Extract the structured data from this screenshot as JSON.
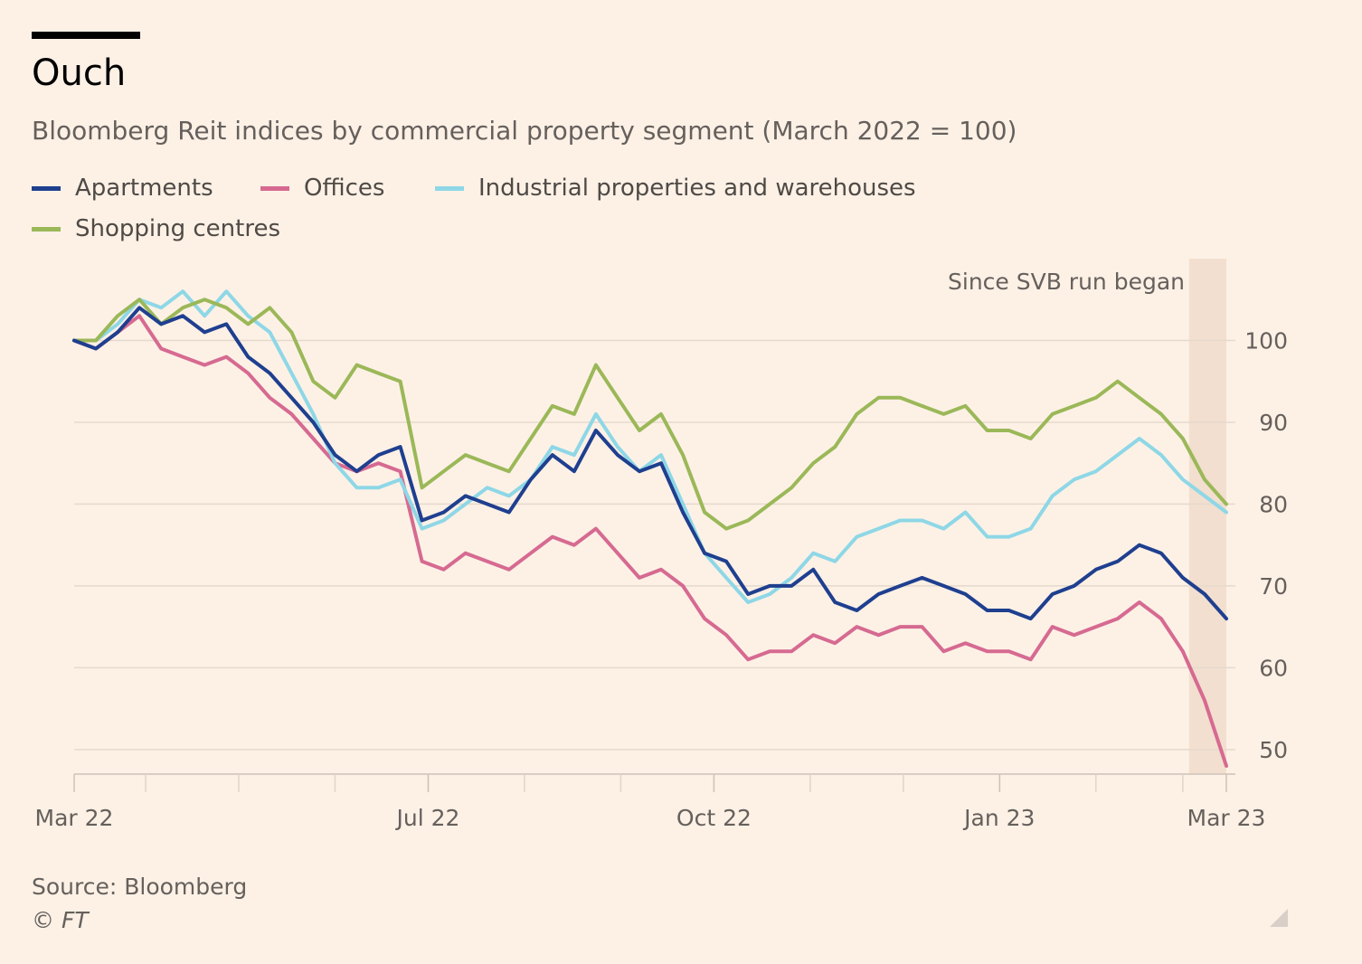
{
  "header": {
    "title": "Ouch",
    "subtitle": "Bloomberg Reit indices by commercial property segment (March 2022 = 100)"
  },
  "legend": [
    {
      "label": "Apartments",
      "color": "#1f3f8f"
    },
    {
      "label": "Offices",
      "color": "#d66a91"
    },
    {
      "label": "Industrial properties and warehouses",
      "color": "#8ed7e6"
    },
    {
      "label": "Shopping centres",
      "color": "#9bb858"
    }
  ],
  "footer": {
    "source": "Source: Bloomberg",
    "copyright": "© FT"
  },
  "chart_data": {
    "type": "line",
    "x_start": "2022-03-09",
    "x_end": "2023-03-15",
    "xtick_labels": [
      "Mar 22",
      "Jul 22",
      "Oct 22",
      "Jan 23",
      "Mar 23"
    ],
    "xtick_dates": [
      "2022-03-09",
      "2022-07-01",
      "2022-10-01",
      "2023-01-01",
      "2023-03-15"
    ],
    "ylim": [
      47,
      110
    ],
    "yticks": [
      50,
      60,
      70,
      80,
      90,
      100
    ],
    "grid": true,
    "legend_position": "top-left",
    "annotation": {
      "label": "Since SVB run began",
      "start": "2023-03-03",
      "end": "2023-03-15"
    },
    "series": [
      {
        "name": "Apartments",
        "color": "#1f3f8f",
        "points": [
          [
            "2022-03-09",
            100
          ],
          [
            "2022-03-16",
            99
          ],
          [
            "2022-03-23",
            101
          ],
          [
            "2022-03-30",
            104
          ],
          [
            "2022-04-06",
            102
          ],
          [
            "2022-04-13",
            103
          ],
          [
            "2022-04-20",
            101
          ],
          [
            "2022-04-27",
            102
          ],
          [
            "2022-05-04",
            98
          ],
          [
            "2022-05-11",
            96
          ],
          [
            "2022-05-18",
            93
          ],
          [
            "2022-05-25",
            90
          ],
          [
            "2022-06-01",
            86
          ],
          [
            "2022-06-08",
            84
          ],
          [
            "2022-06-15",
            86
          ],
          [
            "2022-06-22",
            87
          ],
          [
            "2022-06-29",
            78
          ],
          [
            "2022-07-06",
            79
          ],
          [
            "2022-07-13",
            81
          ],
          [
            "2022-07-20",
            80
          ],
          [
            "2022-07-27",
            79
          ],
          [
            "2022-08-03",
            83
          ],
          [
            "2022-08-10",
            86
          ],
          [
            "2022-08-17",
            84
          ],
          [
            "2022-08-24",
            89
          ],
          [
            "2022-08-31",
            86
          ],
          [
            "2022-09-07",
            84
          ],
          [
            "2022-09-14",
            85
          ],
          [
            "2022-09-21",
            79
          ],
          [
            "2022-09-28",
            74
          ],
          [
            "2022-10-05",
            73
          ],
          [
            "2022-10-12",
            69
          ],
          [
            "2022-10-19",
            70
          ],
          [
            "2022-10-26",
            70
          ],
          [
            "2022-11-02",
            72
          ],
          [
            "2022-11-09",
            68
          ],
          [
            "2022-11-16",
            67
          ],
          [
            "2022-11-23",
            69
          ],
          [
            "2022-11-30",
            70
          ],
          [
            "2022-12-07",
            71
          ],
          [
            "2022-12-14",
            70
          ],
          [
            "2022-12-21",
            69
          ],
          [
            "2022-12-28",
            67
          ],
          [
            "2023-01-04",
            67
          ],
          [
            "2023-01-11",
            66
          ],
          [
            "2023-01-18",
            69
          ],
          [
            "2023-01-25",
            70
          ],
          [
            "2023-02-01",
            72
          ],
          [
            "2023-02-08",
            73
          ],
          [
            "2023-02-15",
            75
          ],
          [
            "2023-02-22",
            74
          ],
          [
            "2023-03-01",
            71
          ],
          [
            "2023-03-08",
            69
          ],
          [
            "2023-03-15",
            66
          ]
        ]
      },
      {
        "name": "Offices",
        "color": "#d66a91",
        "points": [
          [
            "2022-03-09",
            100
          ],
          [
            "2022-03-16",
            99
          ],
          [
            "2022-03-23",
            101
          ],
          [
            "2022-03-30",
            103
          ],
          [
            "2022-04-06",
            99
          ],
          [
            "2022-04-13",
            98
          ],
          [
            "2022-04-20",
            97
          ],
          [
            "2022-04-27",
            98
          ],
          [
            "2022-05-04",
            96
          ],
          [
            "2022-05-11",
            93
          ],
          [
            "2022-05-18",
            91
          ],
          [
            "2022-05-25",
            88
          ],
          [
            "2022-06-01",
            85
          ],
          [
            "2022-06-08",
            84
          ],
          [
            "2022-06-15",
            85
          ],
          [
            "2022-06-22",
            84
          ],
          [
            "2022-06-29",
            73
          ],
          [
            "2022-07-06",
            72
          ],
          [
            "2022-07-13",
            74
          ],
          [
            "2022-07-20",
            73
          ],
          [
            "2022-07-27",
            72
          ],
          [
            "2022-08-03",
            74
          ],
          [
            "2022-08-10",
            76
          ],
          [
            "2022-08-17",
            75
          ],
          [
            "2022-08-24",
            77
          ],
          [
            "2022-08-31",
            74
          ],
          [
            "2022-09-07",
            71
          ],
          [
            "2022-09-14",
            72
          ],
          [
            "2022-09-21",
            70
          ],
          [
            "2022-09-28",
            66
          ],
          [
            "2022-10-05",
            64
          ],
          [
            "2022-10-12",
            61
          ],
          [
            "2022-10-19",
            62
          ],
          [
            "2022-10-26",
            62
          ],
          [
            "2022-11-02",
            64
          ],
          [
            "2022-11-09",
            63
          ],
          [
            "2022-11-16",
            65
          ],
          [
            "2022-11-23",
            64
          ],
          [
            "2022-11-30",
            65
          ],
          [
            "2022-12-07",
            65
          ],
          [
            "2022-12-14",
            62
          ],
          [
            "2022-12-21",
            63
          ],
          [
            "2022-12-28",
            62
          ],
          [
            "2023-01-04",
            62
          ],
          [
            "2023-01-11",
            61
          ],
          [
            "2023-01-18",
            65
          ],
          [
            "2023-01-25",
            64
          ],
          [
            "2023-02-01",
            65
          ],
          [
            "2023-02-08",
            66
          ],
          [
            "2023-02-15",
            68
          ],
          [
            "2023-02-22",
            66
          ],
          [
            "2023-03-01",
            62
          ],
          [
            "2023-03-08",
            56
          ],
          [
            "2023-03-15",
            48
          ]
        ]
      },
      {
        "name": "Industrial properties and warehouses",
        "color": "#8ed7e6",
        "points": [
          [
            "2022-03-09",
            100
          ],
          [
            "2022-03-16",
            100
          ],
          [
            "2022-03-23",
            102
          ],
          [
            "2022-03-30",
            105
          ],
          [
            "2022-04-06",
            104
          ],
          [
            "2022-04-13",
            106
          ],
          [
            "2022-04-20",
            103
          ],
          [
            "2022-04-27",
            106
          ],
          [
            "2022-05-04",
            103
          ],
          [
            "2022-05-11",
            101
          ],
          [
            "2022-05-18",
            96
          ],
          [
            "2022-05-25",
            91
          ],
          [
            "2022-06-01",
            85
          ],
          [
            "2022-06-08",
            82
          ],
          [
            "2022-06-15",
            82
          ],
          [
            "2022-06-22",
            83
          ],
          [
            "2022-06-29",
            77
          ],
          [
            "2022-07-06",
            78
          ],
          [
            "2022-07-13",
            80
          ],
          [
            "2022-07-20",
            82
          ],
          [
            "2022-07-27",
            81
          ],
          [
            "2022-08-03",
            83
          ],
          [
            "2022-08-10",
            87
          ],
          [
            "2022-08-17",
            86
          ],
          [
            "2022-08-24",
            91
          ],
          [
            "2022-08-31",
            87
          ],
          [
            "2022-09-07",
            84
          ],
          [
            "2022-09-14",
            86
          ],
          [
            "2022-09-21",
            80
          ],
          [
            "2022-09-28",
            74
          ],
          [
            "2022-10-05",
            71
          ],
          [
            "2022-10-12",
            68
          ],
          [
            "2022-10-19",
            69
          ],
          [
            "2022-10-26",
            71
          ],
          [
            "2022-11-02",
            74
          ],
          [
            "2022-11-09",
            73
          ],
          [
            "2022-11-16",
            76
          ],
          [
            "2022-11-23",
            77
          ],
          [
            "2022-11-30",
            78
          ],
          [
            "2022-12-07",
            78
          ],
          [
            "2022-12-14",
            77
          ],
          [
            "2022-12-21",
            79
          ],
          [
            "2022-12-28",
            76
          ],
          [
            "2023-01-04",
            76
          ],
          [
            "2023-01-11",
            77
          ],
          [
            "2023-01-18",
            81
          ],
          [
            "2023-01-25",
            83
          ],
          [
            "2023-02-01",
            84
          ],
          [
            "2023-02-08",
            86
          ],
          [
            "2023-02-15",
            88
          ],
          [
            "2023-02-22",
            86
          ],
          [
            "2023-03-01",
            83
          ],
          [
            "2023-03-08",
            81
          ],
          [
            "2023-03-15",
            79
          ]
        ]
      },
      {
        "name": "Shopping centres",
        "color": "#9bb858",
        "points": [
          [
            "2022-03-09",
            100
          ],
          [
            "2022-03-16",
            100
          ],
          [
            "2022-03-23",
            103
          ],
          [
            "2022-03-30",
            105
          ],
          [
            "2022-04-06",
            102
          ],
          [
            "2022-04-13",
            104
          ],
          [
            "2022-04-20",
            105
          ],
          [
            "2022-04-27",
            104
          ],
          [
            "2022-05-04",
            102
          ],
          [
            "2022-05-11",
            104
          ],
          [
            "2022-05-18",
            101
          ],
          [
            "2022-05-25",
            95
          ],
          [
            "2022-06-01",
            93
          ],
          [
            "2022-06-08",
            97
          ],
          [
            "2022-06-15",
            96
          ],
          [
            "2022-06-22",
            95
          ],
          [
            "2022-06-29",
            82
          ],
          [
            "2022-07-06",
            84
          ],
          [
            "2022-07-13",
            86
          ],
          [
            "2022-07-20",
            85
          ],
          [
            "2022-07-27",
            84
          ],
          [
            "2022-08-03",
            88
          ],
          [
            "2022-08-10",
            92
          ],
          [
            "2022-08-17",
            91
          ],
          [
            "2022-08-24",
            97
          ],
          [
            "2022-08-31",
            93
          ],
          [
            "2022-09-07",
            89
          ],
          [
            "2022-09-14",
            91
          ],
          [
            "2022-09-21",
            86
          ],
          [
            "2022-09-28",
            79
          ],
          [
            "2022-10-05",
            77
          ],
          [
            "2022-10-12",
            78
          ],
          [
            "2022-10-19",
            80
          ],
          [
            "2022-10-26",
            82
          ],
          [
            "2022-11-02",
            85
          ],
          [
            "2022-11-09",
            87
          ],
          [
            "2022-11-16",
            91
          ],
          [
            "2022-11-23",
            93
          ],
          [
            "2022-11-30",
            93
          ],
          [
            "2022-12-07",
            92
          ],
          [
            "2022-12-14",
            91
          ],
          [
            "2022-12-21",
            92
          ],
          [
            "2022-12-28",
            89
          ],
          [
            "2023-01-04",
            89
          ],
          [
            "2023-01-11",
            88
          ],
          [
            "2023-01-18",
            91
          ],
          [
            "2023-01-25",
            92
          ],
          [
            "2023-02-01",
            93
          ],
          [
            "2023-02-08",
            95
          ],
          [
            "2023-02-15",
            93
          ],
          [
            "2023-02-22",
            91
          ],
          [
            "2023-03-01",
            88
          ],
          [
            "2023-03-08",
            83
          ],
          [
            "2023-03-15",
            80
          ]
        ]
      }
    ]
  }
}
